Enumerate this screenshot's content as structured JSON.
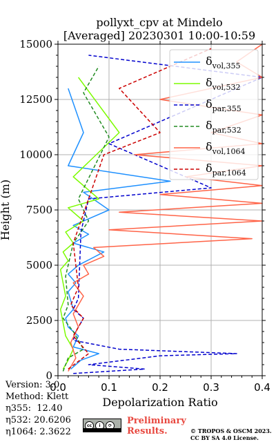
{
  "chart_data": {
    "type": "line",
    "title_line1": "pollyxt_cpv at Mindelo",
    "title_line2": "[Averaged] 20230301 10:00-10:59",
    "xlabel": "Depolarization Ratio",
    "ylabel": "Height (m)",
    "xlim": [
      0,
      0.4
    ],
    "ylim": [
      0,
      15000
    ],
    "xticks": [
      "0.0",
      "0.1",
      "0.2",
      "0.3",
      "0.4"
    ],
    "yticks": [
      "0",
      "2500",
      "5000",
      "7500",
      "10000",
      "12500",
      "15000"
    ],
    "xtick_values": [
      0,
      0.1,
      0.2,
      0.3,
      0.4
    ],
    "ytick_values": [
      0,
      2500,
      5000,
      7500,
      10000,
      12500,
      15000
    ],
    "grid": true,
    "legend_position": "upper right",
    "series": [
      {
        "name": "δvol,355",
        "label_base": "δ",
        "label_sub": "vol,355",
        "color": "#1e90ff",
        "dash": "solid",
        "x": [
          0.025,
          0.045,
          0.08,
          0.03,
          0.04,
          0.02,
          0.015,
          0.03,
          0.025,
          0.02,
          0.035,
          0.02,
          0.04,
          0.09,
          0.03,
          0.06,
          0.03,
          0.1,
          0.05,
          0.22,
          0.02,
          0.05,
          0.02
        ],
        "y": [
          300,
          700,
          1000,
          1300,
          1800,
          2200,
          2600,
          3000,
          3400,
          3800,
          4200,
          4600,
          5000,
          5600,
          6000,
          6400,
          6800,
          7500,
          8300,
          8800,
          9500,
          11000,
          13000
        ]
      },
      {
        "name": "δvol,532",
        "label_base": "δ",
        "label_sub": "vol,532",
        "color": "#7cfc00",
        "dash": "solid",
        "x": [
          0.01,
          0.02,
          0.03,
          0.015,
          0.01,
          0.005,
          0.015,
          0.01,
          0.005,
          0.02,
          0.01,
          0.03,
          0.015,
          0.05,
          0.02,
          0.08,
          0.03,
          0.12,
          0.04
        ],
        "y": [
          300,
          700,
          1200,
          1800,
          2400,
          3000,
          3600,
          4200,
          4800,
          5200,
          5600,
          6000,
          6500,
          7000,
          7600,
          8000,
          9000,
          11000,
          13500
        ]
      },
      {
        "name": "δpar,355",
        "label_base": "δ",
        "label_sub": "par,355",
        "color": "#0000cd",
        "dash": "dashed",
        "x": [
          0.03,
          0.17,
          0.06,
          0.2,
          0.35,
          0.12,
          0.03,
          0.035,
          0.05,
          0.03,
          0.04,
          0.045,
          0.06,
          0.3,
          0.1,
          0.4,
          0.06
        ],
        "y": [
          100,
          300,
          500,
          900,
          1000,
          1200,
          1600,
          2000,
          2600,
          3000,
          3500,
          6500,
          8000,
          8500,
          10500,
          13500,
          14500
        ]
      },
      {
        "name": "δpar,532",
        "label_base": "δ",
        "label_sub": "par,532",
        "color": "#228b22",
        "dash": "dashed",
        "x": [
          0.01,
          0.02,
          0.05,
          0.03,
          0.01,
          0.02,
          0.015,
          0.03,
          0.06,
          0.04,
          0.1,
          0.05,
          0.08
        ],
        "y": [
          200,
          800,
          1200,
          2000,
          2600,
          3200,
          4500,
          6000,
          7000,
          8000,
          10800,
          12800,
          14000
        ]
      },
      {
        "name": "δvol,1064",
        "label_base": "δ",
        "label_sub": "vol,1064",
        "color": "#ff6347",
        "dash": "solid",
        "x": [
          0.02,
          0.035,
          0.025,
          0.04,
          0.03,
          0.05,
          0.03,
          0.06,
          0.05,
          0.09,
          0.07,
          0.38,
          0.1,
          0.4,
          0.12,
          0.4,
          0.2,
          0.4,
          0.25,
          0.4,
          0.15,
          0.4,
          0.3,
          0.4,
          0.2,
          0.4,
          0.35,
          0.4
        ],
        "y": [
          200,
          800,
          1500,
          2200,
          2800,
          3600,
          4200,
          4600,
          5000,
          5400,
          5800,
          6200,
          6600,
          7000,
          7400,
          7800,
          8200,
          8600,
          9000,
          9500,
          10000,
          10500,
          11000,
          11800,
          12500,
          13500,
          14200,
          15000
        ]
      },
      {
        "name": "δpar,1064",
        "label_base": "δ",
        "label_sub": "par,1064",
        "color": "#cc0000",
        "dash": "dashed",
        "x": [
          0.02,
          0.06,
          0.03,
          0.05,
          0.025,
          0.04,
          0.03,
          0.06,
          0.09,
          0.2,
          0.12,
          0.3
        ],
        "y": [
          300,
          1000,
          1800,
          2600,
          3200,
          4000,
          6000,
          8000,
          10000,
          11000,
          13000,
          14800
        ]
      }
    ]
  },
  "info": {
    "version": "Version: 3.0",
    "method": "Method: Klett",
    "eta355": "η355:  12.40",
    "eta532": "η532: 20.6206",
    "eta1064": "η1064: 2.3622"
  },
  "footer": {
    "preliminary_line1": "Preliminary",
    "preliminary_line2": "Results.",
    "copyright_line1": "© TROPOS & OSCM 2023.",
    "copyright_line2": "CC BY SA 4.0 License.",
    "license_badge": "cc-by-sa-badge",
    "preliminary_color": "#e8483f"
  }
}
